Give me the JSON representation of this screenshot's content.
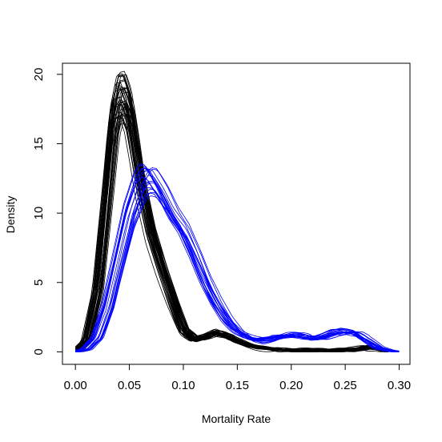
{
  "chart_data": {
    "type": "line",
    "title": "",
    "xlabel": "Mortality Rate",
    "ylabel": "Density",
    "xlim": [
      -0.012,
      0.31
    ],
    "ylim": [
      -0.9,
      20.8
    ],
    "x_ticks": [
      "0.00",
      "0.05",
      "0.10",
      "0.15",
      "0.20",
      "0.25",
      "0.30"
    ],
    "x_tick_values": [
      0.0,
      0.05,
      0.1,
      0.15,
      0.2,
      0.25,
      0.3
    ],
    "y_ticks": [
      "0",
      "5",
      "10",
      "15",
      "20"
    ],
    "y_tick_values": [
      0,
      5,
      10,
      15,
      20
    ],
    "grid": false,
    "legend": "none",
    "colors": {
      "group_a": "#000000",
      "group_b": "#0000ff"
    },
    "series": [
      {
        "color": "#000000",
        "curve_count": 40,
        "x": [
          0.0,
          0.01,
          0.02,
          0.03,
          0.035,
          0.04,
          0.045,
          0.05,
          0.055,
          0.06,
          0.07,
          0.08,
          0.09,
          0.1,
          0.11,
          0.12,
          0.13,
          0.14,
          0.15,
          0.16,
          0.17,
          0.18,
          0.2,
          0.22,
          0.24,
          0.26,
          0.27,
          0.28,
          0.29
        ],
        "values": [
          0.0,
          0.8,
          4.5,
          12.5,
          16.8,
          18.6,
          18.7,
          17.6,
          15.2,
          12.5,
          8.8,
          6.2,
          3.8,
          1.6,
          0.9,
          1.1,
          1.4,
          1.2,
          0.8,
          0.5,
          0.3,
          0.2,
          0.1,
          0.1,
          0.1,
          0.2,
          0.3,
          0.2,
          0.0
        ]
      },
      {
        "color": "#0000ff",
        "curve_count": 20,
        "x": [
          0.0,
          0.01,
          0.02,
          0.03,
          0.04,
          0.05,
          0.06,
          0.065,
          0.07,
          0.08,
          0.09,
          0.1,
          0.11,
          0.12,
          0.13,
          0.14,
          0.15,
          0.16,
          0.17,
          0.18,
          0.19,
          0.2,
          0.21,
          0.22,
          0.23,
          0.24,
          0.25,
          0.26,
          0.27,
          0.28,
          0.29,
          0.3
        ],
        "values": [
          0.0,
          0.2,
          1.0,
          3.2,
          6.5,
          9.8,
          12.0,
          12.5,
          12.4,
          11.2,
          9.7,
          8.6,
          6.9,
          5.0,
          3.5,
          2.3,
          1.5,
          1.0,
          0.8,
          0.9,
          1.1,
          1.2,
          1.1,
          0.9,
          1.1,
          1.4,
          1.5,
          1.3,
          0.8,
          0.3,
          0.1,
          0.0
        ]
      }
    ]
  }
}
